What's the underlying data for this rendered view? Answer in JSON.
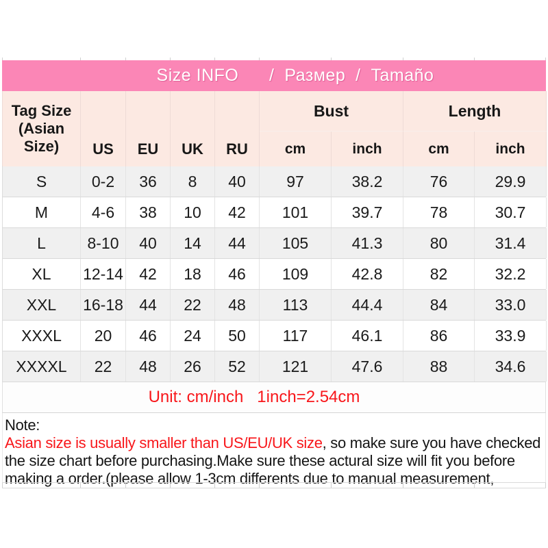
{
  "colors": {
    "title_bar_pink": "#fb86b6",
    "header_light_pink": "#fce9e2",
    "alt_row_gray": "#f0f0f0",
    "accent_red": "#f8161a"
  },
  "title": "Size INFO      /  Размер  /  Tamaño",
  "table": {
    "headers": {
      "tag_size": "Tag Size (Asian Size)",
      "us": "US",
      "eu": "EU",
      "uk": "UK",
      "ru": "RU",
      "bust": "Bust",
      "length": "Length",
      "bust_cm": "cm",
      "bust_inch": "inch",
      "length_cm": "cm",
      "length_inch": "inch"
    },
    "rows": [
      {
        "size": "S",
        "us": "0-2",
        "eu": "36",
        "uk": "8",
        "ru": "40",
        "bust_cm": "97",
        "bust_inch": "38.2",
        "length_cm": "76",
        "length_inch": "29.9"
      },
      {
        "size": "M",
        "us": "4-6",
        "eu": "38",
        "uk": "10",
        "ru": "42",
        "bust_cm": "101",
        "bust_inch": "39.7",
        "length_cm": "78",
        "length_inch": "30.7"
      },
      {
        "size": "L",
        "us": "8-10",
        "eu": "40",
        "uk": "14",
        "ru": "44",
        "bust_cm": "105",
        "bust_inch": "41.3",
        "length_cm": "80",
        "length_inch": "31.4"
      },
      {
        "size": "XL",
        "us": "12-14",
        "eu": "42",
        "uk": "18",
        "ru": "46",
        "bust_cm": "109",
        "bust_inch": "42.8",
        "length_cm": "82",
        "length_inch": "32.2"
      },
      {
        "size": "XXL",
        "us": "16-18",
        "eu": "44",
        "uk": "22",
        "ru": "48",
        "bust_cm": "113",
        "bust_inch": "44.4",
        "length_cm": "84",
        "length_inch": "33.0"
      },
      {
        "size": "XXXL",
        "us": "20",
        "eu": "46",
        "uk": "24",
        "ru": "50",
        "bust_cm": "117",
        "bust_inch": "46.1",
        "length_cm": "86",
        "length_inch": "33.9"
      },
      {
        "size": "XXXXL",
        "us": "22",
        "eu": "48",
        "uk": "26",
        "ru": "52",
        "bust_cm": "121",
        "bust_inch": "47.6",
        "length_cm": "88",
        "length_inch": "34.6"
      }
    ]
  },
  "unit_note": "Unit: cm/inch   1inch=2.54cm",
  "note": {
    "label": "Note:",
    "line1_red": "Asian size is usually smaller than US/EU/UK size",
    "line1_rest": ", so make sure you have checked",
    "line2": "the size chart before purchasing.Make sure these actural size will fit you before",
    "line3": "making a order.(please allow 1-3cm differents due to manual measurement,"
  },
  "chart_data": {
    "type": "table",
    "title": "Size INFO / Размер / Tamaño",
    "columns": [
      "Tag Size (Asian Size)",
      "US",
      "EU",
      "UK",
      "RU",
      "Bust cm",
      "Bust inch",
      "Length cm",
      "Length inch"
    ],
    "rows": [
      [
        "S",
        "0-2",
        "36",
        "8",
        "40",
        "97",
        "38.2",
        "76",
        "29.9"
      ],
      [
        "M",
        "4-6",
        "38",
        "10",
        "42",
        "101",
        "39.7",
        "78",
        "30.7"
      ],
      [
        "L",
        "8-10",
        "40",
        "14",
        "44",
        "105",
        "41.3",
        "80",
        "31.4"
      ],
      [
        "XL",
        "12-14",
        "42",
        "18",
        "46",
        "109",
        "42.8",
        "82",
        "32.2"
      ],
      [
        "XXL",
        "16-18",
        "44",
        "22",
        "48",
        "113",
        "44.4",
        "84",
        "33.0"
      ],
      [
        "XXXL",
        "20",
        "46",
        "24",
        "50",
        "117",
        "46.1",
        "86",
        "33.9"
      ],
      [
        "XXXXL",
        "22",
        "48",
        "26",
        "52",
        "121",
        "47.6",
        "88",
        "34.6"
      ]
    ]
  }
}
